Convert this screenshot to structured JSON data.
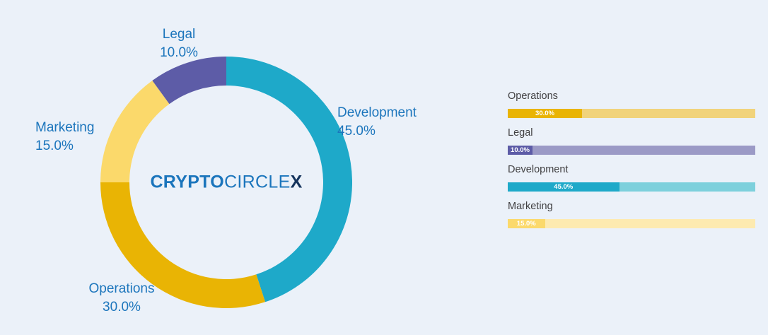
{
  "background_color": "#ebf1f9",
  "logo": {
    "part1": "CRYPTO",
    "part2": "CIRCLE",
    "part3": "X",
    "full": "CRYPTOCIRCLEX"
  },
  "chart_data": {
    "type": "pie",
    "donut": true,
    "title": "",
    "categories": [
      "Development",
      "Operations",
      "Marketing",
      "Legal"
    ],
    "values": [
      45.0,
      30.0,
      15.0,
      10.0
    ],
    "colors": [
      "#1ea9c9",
      "#e9b404",
      "#fbd96b",
      "#5d5ca7"
    ],
    "start_angle_clockwise_from_top": 0,
    "legend_position": "right",
    "center_text": "CRYPTOCIRCLEX"
  },
  "donut_labels": {
    "legal": {
      "name": "Legal",
      "pct": "10.0%"
    },
    "development": {
      "name": "Development",
      "pct": "45.0%"
    },
    "marketing": {
      "name": "Marketing",
      "pct": "15.0%"
    },
    "operations": {
      "name": "Operations",
      "pct": "30.0%"
    }
  },
  "legend_bars": [
    {
      "label": "Operations",
      "value": 30.0,
      "display": "30.0%",
      "fill": "#e9b404",
      "track": "#f1d37b"
    },
    {
      "label": "Legal",
      "value": 10.0,
      "display": "10.0%",
      "fill": "#5d5ca7",
      "track": "#9b9ac6"
    },
    {
      "label": "Development",
      "value": 45.0,
      "display": "45.0%",
      "fill": "#1ea9c9",
      "track": "#7dd0dc"
    },
    {
      "label": "Marketing",
      "value": 15.0,
      "display": "15.0%",
      "fill": "#fbd96b",
      "track": "#fdeab0"
    }
  ]
}
